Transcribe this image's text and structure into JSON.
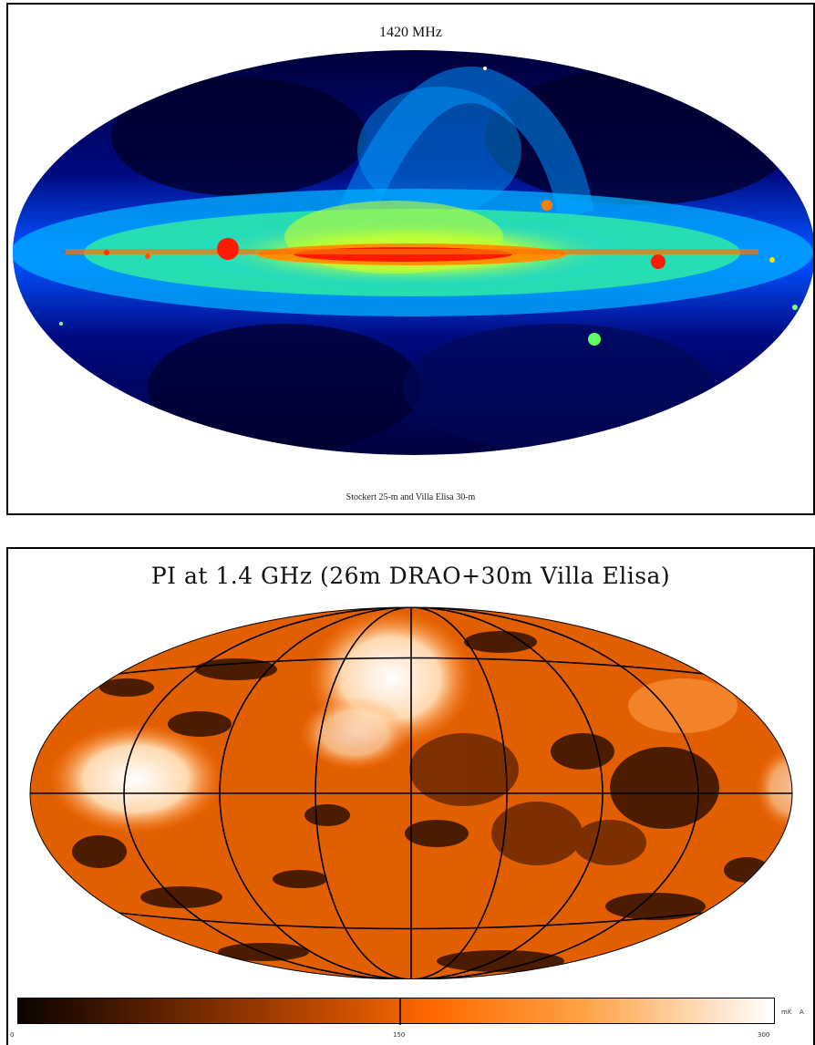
{
  "top_panel": {
    "title": "1420 MHz",
    "caption": "Stockert 25-m and Villa Elisa 30-m",
    "colormap": [
      "#00003a",
      "#0010c8",
      "#0070ff",
      "#00e0ff",
      "#40ff80",
      "#f0ff00",
      "#ff8000",
      "#ff0000"
    ]
  },
  "bottom_panel": {
    "title": "PI at 1.4 GHz (26m DRAO+30m Villa Elisa)",
    "colorbar": {
      "tick_min": "0",
      "tick_mid": "150",
      "tick_max": "300",
      "unit": "mK",
      "unit_extra": "A",
      "colors": [
        "#0a0300",
        "#5a2000",
        "#b34400",
        "#ff6a00",
        "#ffa347",
        "#ffe2c4",
        "#ffffff"
      ]
    }
  }
}
